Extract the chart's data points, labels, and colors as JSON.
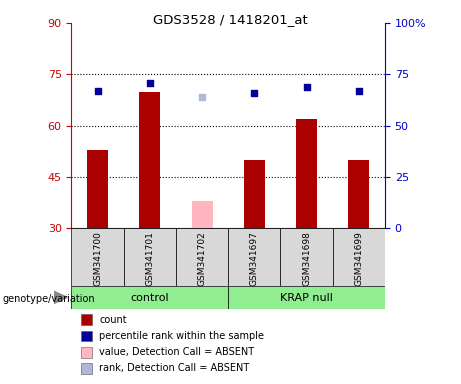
{
  "title": "GDS3528 / 1418201_at",
  "samples": [
    "GSM341700",
    "GSM341701",
    "GSM341702",
    "GSM341697",
    "GSM341698",
    "GSM341699"
  ],
  "count_values": [
    53,
    70,
    null,
    50,
    62,
    50
  ],
  "count_absent": [
    null,
    null,
    38,
    null,
    null,
    null
  ],
  "percentile_values": [
    67,
    71,
    null,
    66,
    69,
    67
  ],
  "percentile_absent": [
    null,
    null,
    64,
    null,
    null,
    null
  ],
  "ylim_left": [
    30,
    90
  ],
  "ylim_right": [
    0,
    100
  ],
  "yticks_left": [
    30,
    45,
    60,
    75,
    90
  ],
  "yticks_right": [
    0,
    25,
    50,
    75,
    100
  ],
  "hlines": [
    45,
    60,
    75
  ],
  "bar_color": "#AA0000",
  "bar_absent_color": "#FFB6C1",
  "dot_color": "#000099",
  "dot_absent_color": "#B0B8D8",
  "left_axis_color": "#CC0000",
  "right_axis_color": "#0000CC",
  "groups_info": [
    {
      "label": "control",
      "start": 0,
      "end": 2,
      "color": "#90EE90"
    },
    {
      "label": "KRAP null",
      "start": 3,
      "end": 5,
      "color": "#90EE90"
    }
  ],
  "legend_items": [
    {
      "label": "count",
      "color": "#AA0000"
    },
    {
      "label": "percentile rank within the sample",
      "color": "#000099"
    },
    {
      "label": "value, Detection Call = ABSENT",
      "color": "#FFB6C1"
    },
    {
      "label": "rank, Detection Call = ABSENT",
      "color": "#B0B8D8"
    }
  ]
}
